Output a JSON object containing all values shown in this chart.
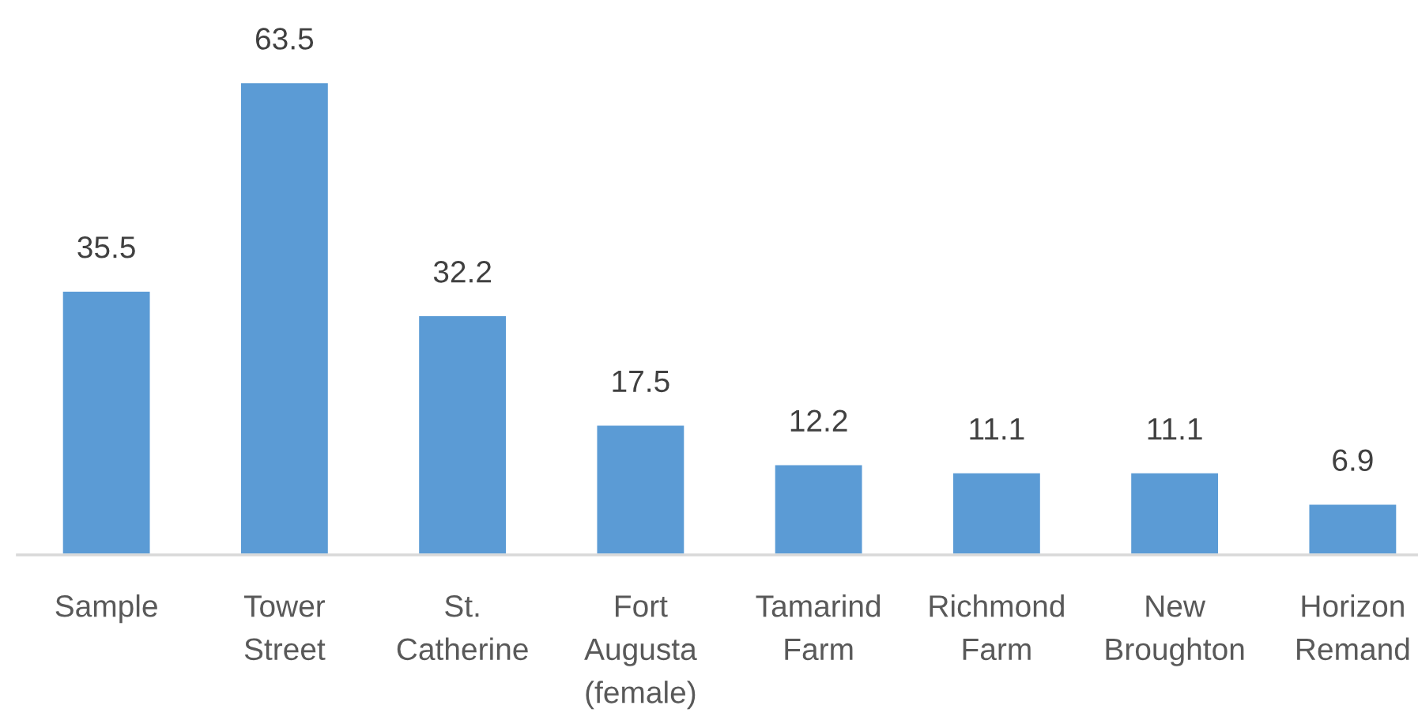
{
  "chart_data": {
    "type": "bar",
    "categories": [
      "Sample",
      "Tower Street",
      "St. Catherine",
      "Fort Augusta (female)",
      "Tamarind Farm",
      "Richmond Farm",
      "New Broughton",
      "Horizon Remand"
    ],
    "values": [
      35.5,
      63.5,
      32.2,
      17.5,
      12.2,
      11.1,
      11.1,
      6.9
    ],
    "color": "#5b9bd5",
    "data_labels": true,
    "tick_labels": "x"
  }
}
